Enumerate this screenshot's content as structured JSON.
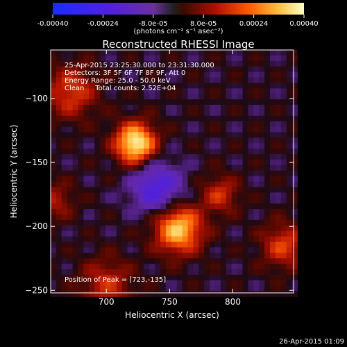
{
  "colorbar": {
    "tick_labels": [
      "-0.00040",
      "-0.00024",
      "-8.0e-05",
      "8.0e-05",
      "0.00024",
      "0.00040"
    ],
    "tick_values": [
      -0.0004,
      -0.00024,
      -8e-05,
      8e-05,
      0.00024,
      0.0004
    ],
    "unit_label": "(photons cm⁻² s⁻¹ asec⁻²)",
    "range": [
      -0.0004,
      0.0004
    ]
  },
  "chart_data": {
    "type": "heatmap",
    "title": "Reconstructed RHESSI Image",
    "xlabel": "Heliocentric X (arcsec)",
    "ylabel": "Heliocentric Y (arcsec)",
    "xlim": [
      656,
      848
    ],
    "ylim": [
      -252,
      -62
    ],
    "x_ticks": [
      700,
      750,
      800
    ],
    "y_ticks": [
      -100,
      -150,
      -200,
      -250
    ],
    "annotations": [
      "25-Apr-2015 23:25:30.000 to 23:31:30.000",
      "Detectors: 3F 5F 6F 7F 8F 9F, Att 0",
      "Energy Range: 25.0 - 50.0 keV",
      "Clean     Total counts: 2.52E+04"
    ],
    "peak_label": "Position of Peak = [723,-135]",
    "peak": [
      723,
      -135
    ],
    "sources": [
      {
        "x": 723,
        "y": -135,
        "amplitude": 0.0004,
        "sigma": 11
      },
      {
        "x": 757,
        "y": -202,
        "amplitude": 0.00034,
        "sigma": 13
      },
      {
        "x": 672,
        "y": -95,
        "amplitude": 0.00018,
        "sigma": 14
      },
      {
        "x": 790,
        "y": -175,
        "amplitude": 0.00016,
        "sigma": 10
      },
      {
        "x": 840,
        "y": -215,
        "amplitude": 0.00018,
        "sigma": 12
      },
      {
        "x": 700,
        "y": -245,
        "amplitude": 0.00015,
        "sigma": 14
      },
      {
        "x": 660,
        "y": -180,
        "amplitude": 0.00012,
        "sigma": 10
      },
      {
        "x": 740,
        "y": -170,
        "amplitude": -0.00022,
        "sigma": 14
      }
    ]
  },
  "footer": {
    "timestamp": "26-Apr-2015 01:09"
  }
}
